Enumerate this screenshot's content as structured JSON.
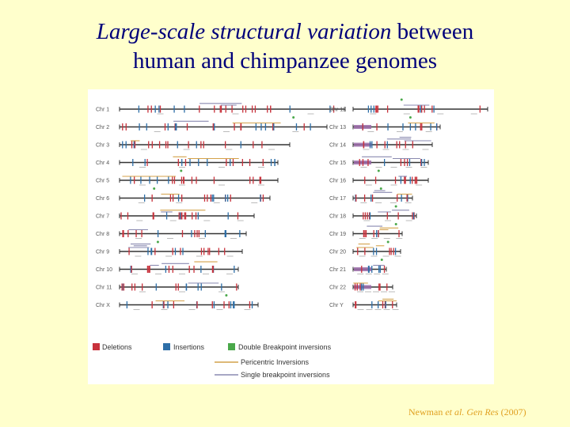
{
  "title": {
    "italic": "Large-scale structural variation",
    "rest_line1": " between",
    "line2": "human and chimpanzee genomes"
  },
  "figure": {
    "left_chromosomes": [
      "Chr 1",
      "Chr 2",
      "Chr 3",
      "Chr 4",
      "Chr 5",
      "Chr 6",
      "Chr 7",
      "Chr 8",
      "Chr 9",
      "Chr 10",
      "Chr 11",
      "Chr X"
    ],
    "right_chromosomes": [
      "Chr 12",
      "Chr 13",
      "Chr 14",
      "Chr 15",
      "Chr 16",
      "Chr 17",
      "Chr 18",
      "Chr 19",
      "Chr 20",
      "Chr 21",
      "Chr 22",
      "Chr Y"
    ],
    "legend": {
      "deletions": "Deletions",
      "insertions": "Insertions",
      "double_breakpoint": "Double Breakpoint inversions",
      "pericentric": "Pericentric Inversions",
      "single_breakpoint": "Single breakpoint inversions"
    },
    "colors": {
      "deletion": "#c8323c",
      "insertion": "#2e6fa8",
      "double_breakpoint": "#4aa84a",
      "pericentric": "#d4a24a",
      "single_breakpoint": "#8a8ab0",
      "centromere": "#9a6aa8"
    }
  },
  "citation": {
    "authors": "Newman",
    "etal": " et al. Gen Res",
    "year": " (2007)"
  }
}
